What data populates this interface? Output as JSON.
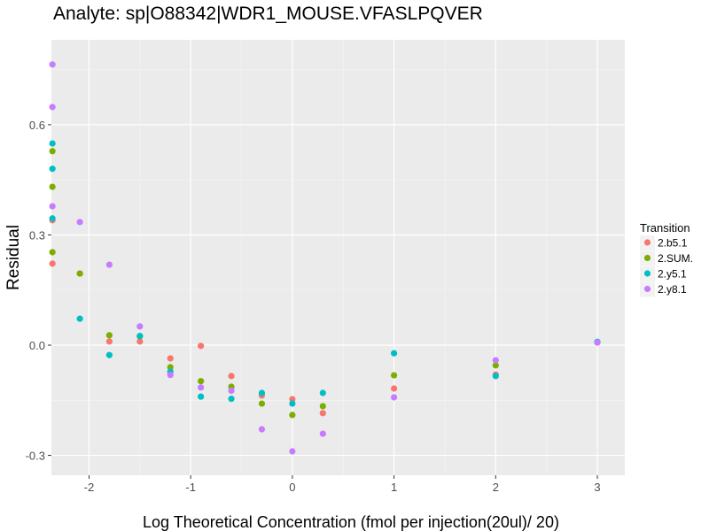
{
  "chart_data": {
    "type": "scatter",
    "title": "Analyte: sp|O88342|WDR1_MOUSE.VFASLPQVER",
    "xlabel": "Log Theoretical Concentration (fmol per injection(20ul)/ 20)",
    "ylabel": "Residual",
    "xlim": [
      -2.37,
      3.27
    ],
    "ylim": [
      -0.354,
      0.831
    ],
    "xticks": [
      -2,
      -1,
      0,
      1,
      2,
      3
    ],
    "xtick_labels": [
      "-2",
      "-1",
      "0",
      "1",
      "2",
      "3"
    ],
    "yticks": [
      -0.3,
      0.0,
      0.3,
      0.6
    ],
    "ytick_labels": [
      "-0.3",
      "0.0",
      "0.3",
      "0.6"
    ],
    "grid": true,
    "legend": {
      "title": "Transition",
      "placement": "right"
    },
    "series": [
      {
        "name": "2.b5.1",
        "color": "#F8766D",
        "points": [
          [
            -2.36,
            0.222
          ],
          [
            -2.36,
            0.34
          ],
          [
            -2.09,
            0.195
          ],
          [
            -1.8,
            0.01
          ],
          [
            -1.5,
            0.01
          ],
          [
            -1.2,
            -0.036
          ],
          [
            -0.9,
            -0.002
          ],
          [
            -0.6,
            -0.084
          ],
          [
            -0.3,
            -0.137
          ],
          [
            0,
            -0.147
          ],
          [
            0.3,
            -0.185
          ],
          [
            1,
            -0.118
          ],
          [
            2,
            -0.08
          ],
          [
            3,
            0.008
          ]
        ]
      },
      {
        "name": "2.SUM.",
        "color": "#7CAE00",
        "points": [
          [
            -2.36,
            0.528
          ],
          [
            -2.36,
            0.431
          ],
          [
            -2.36,
            0.253
          ],
          [
            -2.09,
            0.195
          ],
          [
            -1.8,
            0.027
          ],
          [
            -1.5,
            0.024
          ],
          [
            -1.2,
            -0.06
          ],
          [
            -0.9,
            -0.098
          ],
          [
            -0.6,
            -0.113
          ],
          [
            -0.3,
            -0.159
          ],
          [
            0,
            -0.19
          ],
          [
            0.3,
            -0.166
          ],
          [
            1,
            -0.082
          ],
          [
            2,
            -0.055
          ],
          [
            3,
            0.008
          ]
        ]
      },
      {
        "name": "2.y5.1",
        "color": "#00BFC4",
        "points": [
          [
            -2.36,
            0.549
          ],
          [
            -2.36,
            0.48
          ],
          [
            -2.36,
            0.345
          ],
          [
            -2.09,
            0.072
          ],
          [
            -1.8,
            -0.027
          ],
          [
            -1.5,
            0.025
          ],
          [
            -1.2,
            -0.072
          ],
          [
            -0.9,
            -0.14
          ],
          [
            -0.6,
            -0.146
          ],
          [
            -0.3,
            -0.13
          ],
          [
            0,
            -0.159
          ],
          [
            0.3,
            -0.13
          ],
          [
            1,
            -0.022
          ],
          [
            2,
            -0.084
          ],
          [
            3,
            0.009
          ]
        ]
      },
      {
        "name": "2.y8.1",
        "color": "#C77CFF",
        "points": [
          [
            -2.36,
            0.764
          ],
          [
            -2.36,
            0.648
          ],
          [
            -2.36,
            0.378
          ],
          [
            -2.09,
            0.335
          ],
          [
            -1.8,
            0.219
          ],
          [
            -1.5,
            0.051
          ],
          [
            -1.2,
            -0.081
          ],
          [
            -0.9,
            -0.115
          ],
          [
            -0.6,
            -0.124
          ],
          [
            -0.3,
            -0.229
          ],
          [
            0,
            -0.289
          ],
          [
            0.3,
            -0.241
          ],
          [
            1,
            -0.142
          ],
          [
            2,
            -0.041
          ],
          [
            3,
            0.007
          ]
        ]
      }
    ]
  }
}
